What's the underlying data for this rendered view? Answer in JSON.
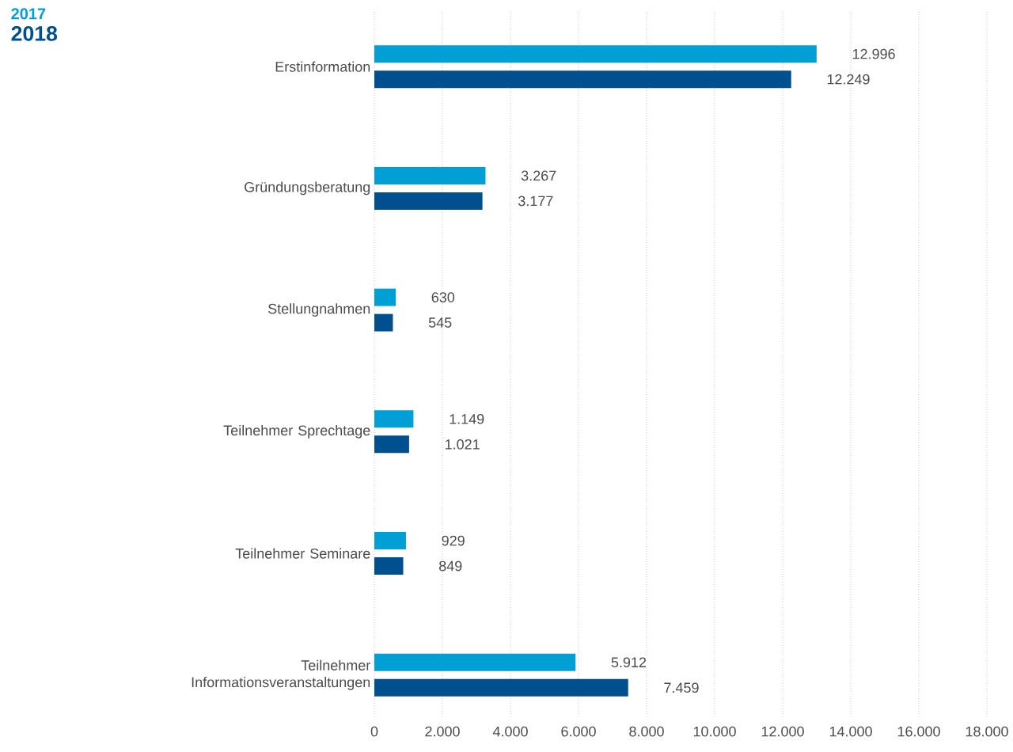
{
  "chart_data": {
    "type": "bar",
    "orientation": "horizontal",
    "categories": [
      "Erstinformation",
      "Gründungsberatung",
      "Stellungnahmen",
      "Teilnehmer Sprechtage",
      "Teilnehmer Seminare",
      "Teilnehmer Informationsveranstaltungen"
    ],
    "series": [
      {
        "name": "2017",
        "color": "#00a0d6",
        "values": [
          12996,
          3267,
          630,
          1149,
          929,
          5912
        ],
        "value_labels": [
          "12.996",
          "3.267",
          "630",
          "1.149",
          "929",
          "5.912"
        ]
      },
      {
        "name": "2018",
        "color": "#00508f",
        "values": [
          12249,
          3177,
          545,
          1021,
          849,
          7459
        ],
        "value_labels": [
          "12.249",
          "3.177",
          "545",
          "1.021",
          "849",
          "7.459"
        ]
      }
    ],
    "xlim": [
      0,
      18000
    ],
    "xticks": [
      0,
      {
        "value": 2000,
        "label": "2.000"
      },
      {
        "value": 4000,
        "label": "4.000"
      },
      {
        "value": 6000,
        "label": "6.000"
      },
      {
        "value": 8000,
        "label": "8.000"
      },
      {
        "value": 10000,
        "label": "10.000"
      },
      {
        "value": 12000,
        "label": "12.000"
      },
      {
        "value": 14000,
        "label": "14.000"
      },
      {
        "value": 16000,
        "label": "16.000"
      },
      {
        "value": 18000,
        "label": "18.000"
      }
    ],
    "grid": "x",
    "legend": "top left"
  }
}
